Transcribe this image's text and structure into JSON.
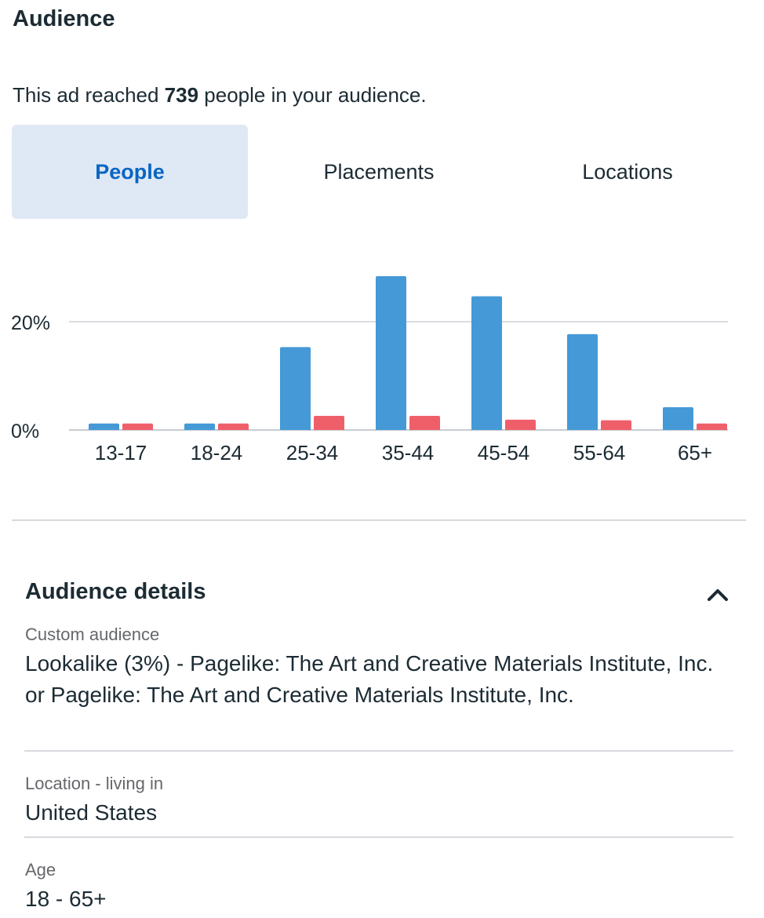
{
  "header": {
    "title": "Audience"
  },
  "reach": {
    "prefix": "This ad reached ",
    "count": "739",
    "suffix": " people in your audience."
  },
  "tabs": [
    {
      "label": "People",
      "active": true
    },
    {
      "label": "Placements",
      "active": false
    },
    {
      "label": "Locations",
      "active": false
    }
  ],
  "chart_data": {
    "type": "bar",
    "categories": [
      "13-17",
      "18-24",
      "25-34",
      "35-44",
      "45-54",
      "55-64",
      "65+"
    ],
    "series": [
      {
        "color": "#4599d7",
        "values": [
          1.2,
          1.2,
          15.3,
          28.4,
          24.7,
          17.7,
          4.2
        ]
      },
      {
        "color": "#ef5f6a",
        "values": [
          1.2,
          1.2,
          2.6,
          2.6,
          1.9,
          1.8,
          1.2
        ]
      }
    ],
    "yticks": [
      0,
      20
    ],
    "ytick_labels": [
      "0%",
      "20%"
    ],
    "ylim": [
      0,
      30
    ],
    "grid": true
  },
  "details": {
    "title": "Audience details",
    "collapse_icon": "chevron-up-icon",
    "fields": [
      {
        "label": "Custom audience",
        "value": "Lookalike (3%) - Pagelike: The Art and Creative Materials Institute, Inc. or Pagelike: The Art and Creative Materials Institute, Inc."
      },
      {
        "label": "Location - living in",
        "value": "United States"
      },
      {
        "label": "Age",
        "value": "18 - 65+"
      }
    ]
  }
}
